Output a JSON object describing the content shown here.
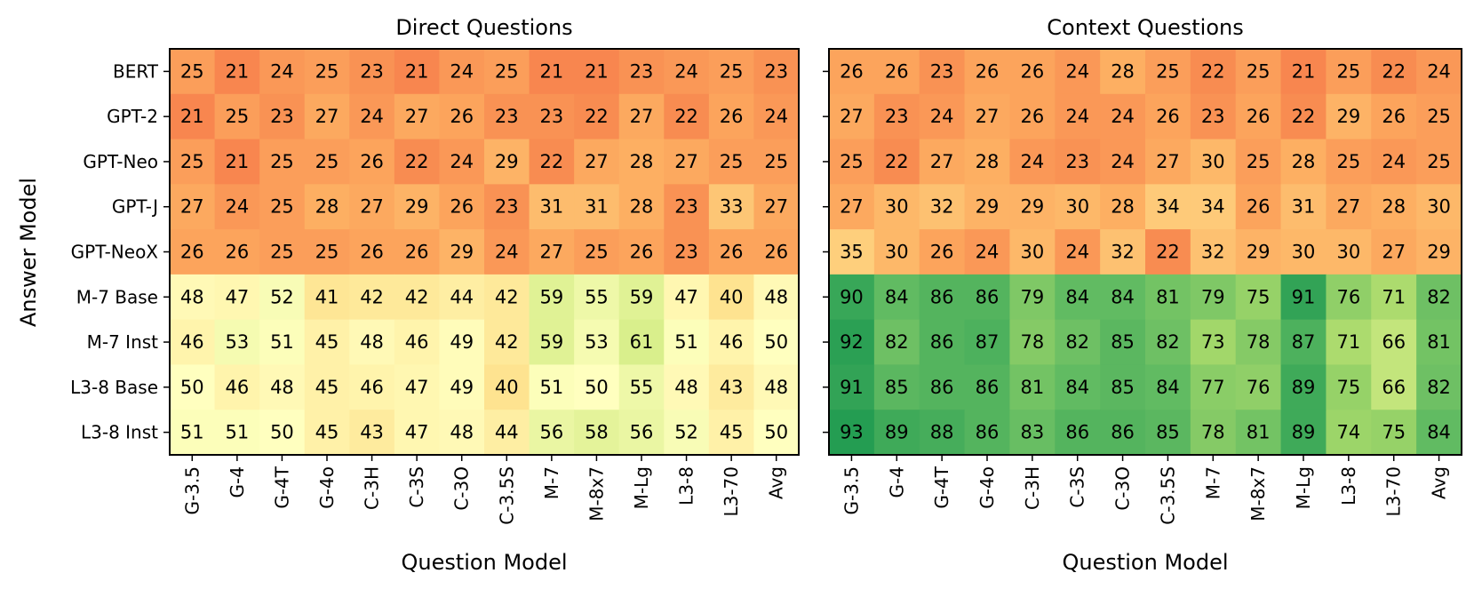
{
  "chart_data": [
    {
      "type": "heatmap",
      "title": "Direct Questions",
      "xlabel": "Question Model",
      "ylabel": "Answer Model",
      "categories_x": [
        "G-3.5",
        "G-4",
        "G-4T",
        "G-4o",
        "C-3H",
        "C-3S",
        "C-3O",
        "C-3.5S",
        "M-7",
        "M-8x7",
        "M-Lg",
        "L3-8",
        "L3-70",
        "Avg"
      ],
      "categories_y": [
        "BERT",
        "GPT-2",
        "GPT-Neo",
        "GPT-J",
        "GPT-NeoX",
        "M-7 Base",
        "M-7 Inst",
        "L3-8 Base",
        "L3-8 Inst"
      ],
      "values": [
        [
          25,
          21,
          24,
          25,
          23,
          21,
          24,
          25,
          21,
          21,
          23,
          24,
          25,
          23
        ],
        [
          21,
          25,
          23,
          27,
          24,
          27,
          26,
          23,
          23,
          22,
          27,
          22,
          26,
          24
        ],
        [
          25,
          21,
          25,
          25,
          26,
          22,
          24,
          29,
          22,
          27,
          28,
          27,
          25,
          25
        ],
        [
          27,
          24,
          25,
          28,
          27,
          29,
          26,
          23,
          31,
          31,
          28,
          23,
          33,
          27
        ],
        [
          26,
          26,
          25,
          25,
          26,
          26,
          29,
          24,
          27,
          25,
          26,
          23,
          26,
          26
        ],
        [
          48,
          47,
          52,
          41,
          42,
          42,
          44,
          42,
          59,
          55,
          59,
          47,
          40,
          48
        ],
        [
          46,
          53,
          51,
          45,
          48,
          46,
          49,
          42,
          59,
          53,
          61,
          51,
          46,
          50
        ],
        [
          50,
          46,
          48,
          45,
          46,
          47,
          49,
          40,
          51,
          50,
          55,
          48,
          43,
          48
        ],
        [
          51,
          51,
          50,
          45,
          43,
          47,
          48,
          44,
          56,
          58,
          56,
          52,
          45,
          50
        ]
      ],
      "colormap": "RdYlGn",
      "vmin": 0,
      "vmax": 100
    },
    {
      "type": "heatmap",
      "title": "Context Questions",
      "xlabel": "Question Model",
      "ylabel": "",
      "categories_x": [
        "G-3.5",
        "G-4",
        "G-4T",
        "G-4o",
        "C-3H",
        "C-3S",
        "C-3O",
        "C-3.5S",
        "M-7",
        "M-8x7",
        "M-Lg",
        "L3-8",
        "L3-70",
        "Avg"
      ],
      "categories_y": [
        "BERT",
        "GPT-2",
        "GPT-Neo",
        "GPT-J",
        "GPT-NeoX",
        "M-7 Base",
        "M-7 Inst",
        "L3-8 Base",
        "L3-8 Inst"
      ],
      "values": [
        [
          26,
          26,
          23,
          26,
          26,
          24,
          28,
          25,
          22,
          25,
          21,
          25,
          22,
          24
        ],
        [
          27,
          23,
          24,
          27,
          26,
          24,
          24,
          26,
          23,
          26,
          22,
          29,
          26,
          25
        ],
        [
          25,
          22,
          27,
          28,
          24,
          23,
          24,
          27,
          30,
          25,
          28,
          25,
          24,
          25
        ],
        [
          27,
          30,
          32,
          29,
          29,
          30,
          28,
          34,
          34,
          26,
          31,
          27,
          28,
          30
        ],
        [
          35,
          30,
          26,
          24,
          30,
          24,
          32,
          22,
          32,
          29,
          30,
          30,
          27,
          29
        ],
        [
          90,
          84,
          86,
          86,
          79,
          84,
          84,
          81,
          79,
          75,
          91,
          76,
          71,
          82
        ],
        [
          92,
          82,
          86,
          87,
          78,
          82,
          85,
          82,
          73,
          78,
          87,
          71,
          66,
          81
        ],
        [
          91,
          85,
          86,
          86,
          81,
          84,
          85,
          84,
          77,
          76,
          89,
          75,
          66,
          82
        ],
        [
          93,
          89,
          88,
          86,
          83,
          86,
          86,
          85,
          78,
          81,
          89,
          74,
          75,
          84
        ]
      ],
      "colormap": "RdYlGn",
      "vmin": 0,
      "vmax": 100
    }
  ]
}
